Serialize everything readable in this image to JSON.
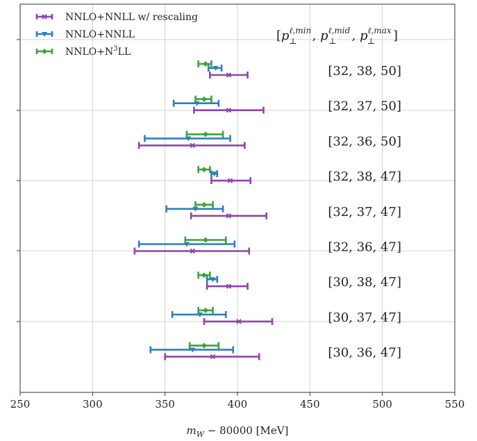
{
  "chart_data": {
    "type": "errorbar",
    "xlabel": "m_W − 80000 [MeV]",
    "xlim": [
      250,
      550
    ],
    "xticks": [
      250,
      300,
      350,
      400,
      450,
      500,
      550
    ],
    "grid": true,
    "legend_position": "top-left",
    "legend_header": "[p⊥^ℓ,min, p⊥^ℓ,mid, p⊥^ℓ,max]",
    "series": [
      {
        "name": "NNLO+NNLL w/ rescaling",
        "color": "#8e44ad",
        "marker": "x"
      },
      {
        "name": "NNLO+NNLL",
        "color": "#2e7dbf",
        "marker": "triangle-down"
      },
      {
        "name": "NNLO+N³LL",
        "color": "#3aa33a",
        "marker": "diamond"
      }
    ],
    "configs": [
      {
        "label": "[32, 38, 50]",
        "points": [
          {
            "series": 0,
            "center": 394,
            "low": 381,
            "high": 407
          },
          {
            "series": 1,
            "center": 385,
            "low": 380,
            "high": 389
          },
          {
            "series": 2,
            "center": 378,
            "low": 373,
            "high": 382
          }
        ]
      },
      {
        "label": "[32, 37, 50]",
        "points": [
          {
            "series": 0,
            "center": 394,
            "low": 370,
            "high": 418
          },
          {
            "series": 1,
            "center": 372,
            "low": 356,
            "high": 387
          },
          {
            "series": 2,
            "center": 377,
            "low": 371,
            "high": 382
          }
        ]
      },
      {
        "label": "[32, 36, 50]",
        "points": [
          {
            "series": 0,
            "center": 369,
            "low": 332,
            "high": 405
          },
          {
            "series": 1,
            "center": 366,
            "low": 336,
            "high": 395
          },
          {
            "series": 2,
            "center": 378,
            "low": 365,
            "high": 390
          }
        ]
      },
      {
        "label": "[32, 38, 47]",
        "points": [
          {
            "series": 0,
            "center": 395,
            "low": 382,
            "high": 409
          },
          {
            "series": 1,
            "center": 384,
            "low": 382,
            "high": 386
          },
          {
            "series": 2,
            "center": 377,
            "low": 373,
            "high": 381
          }
        ]
      },
      {
        "label": "[32, 37, 47]",
        "points": [
          {
            "series": 0,
            "center": 394,
            "low": 368,
            "high": 420
          },
          {
            "series": 1,
            "center": 371,
            "low": 351,
            "high": 390
          },
          {
            "series": 2,
            "center": 377,
            "low": 371,
            "high": 383
          }
        ]
      },
      {
        "label": "[32, 36, 47]",
        "points": [
          {
            "series": 0,
            "center": 369,
            "low": 329,
            "high": 408
          },
          {
            "series": 1,
            "center": 365,
            "low": 332,
            "high": 398
          },
          {
            "series": 2,
            "center": 378,
            "low": 364,
            "high": 392
          }
        ]
      },
      {
        "label": "[30, 38, 47]",
        "points": [
          {
            "series": 0,
            "center": 394,
            "low": 379,
            "high": 407
          },
          {
            "series": 1,
            "center": 383,
            "low": 379,
            "high": 386
          },
          {
            "series": 2,
            "center": 377,
            "low": 373,
            "high": 381
          }
        ]
      },
      {
        "label": "[30, 37, 47]",
        "points": [
          {
            "series": 0,
            "center": 401,
            "low": 377,
            "high": 424
          },
          {
            "series": 1,
            "center": 374,
            "low": 355,
            "high": 392
          },
          {
            "series": 2,
            "center": 378,
            "low": 373,
            "high": 383
          }
        ]
      },
      {
        "label": "[30, 36, 47]",
        "points": [
          {
            "series": 0,
            "center": 383,
            "low": 350,
            "high": 415
          },
          {
            "series": 1,
            "center": 369,
            "low": 340,
            "high": 397
          },
          {
            "series": 2,
            "center": 377,
            "low": 367,
            "high": 387
          }
        ]
      }
    ]
  }
}
